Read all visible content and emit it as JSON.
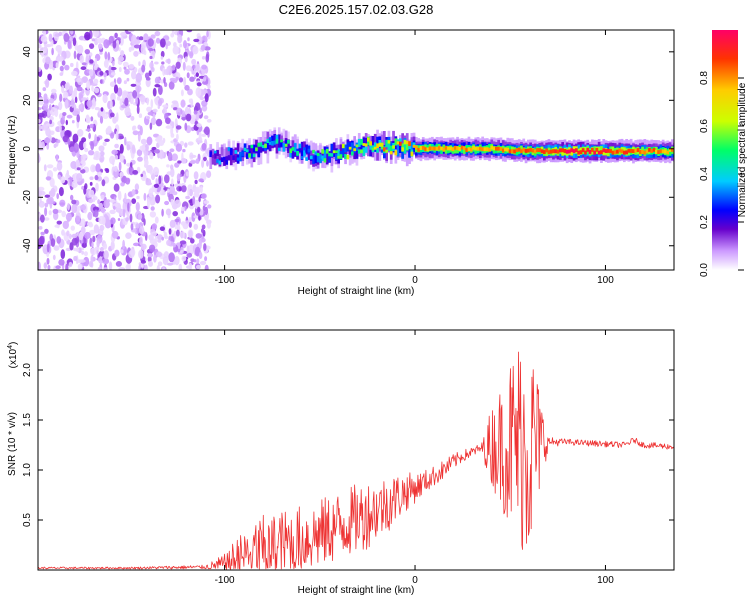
{
  "title": "C2E6.2025.157.02.03.G28",
  "chart_data": [
    {
      "type": "heatmap",
      "name": "spectrogram",
      "xlabel": "Height of straight line (km)",
      "ylabel": "Frequency (Hz)",
      "xlim": [
        -198,
        136
      ],
      "ylim": [
        -50,
        49
      ],
      "x_ticks": [
        -100,
        0,
        100
      ],
      "x_tick_labels": [
        "-100",
        "0",
        "100"
      ],
      "y_ticks": [
        -40,
        -20,
        0,
        20,
        40
      ],
      "y_tick_labels": [
        "-40",
        "-20",
        "0",
        "20",
        "40"
      ],
      "colorbar": {
        "label": "Normalized spectral amplitude",
        "range": [
          0,
          1
        ],
        "ticks": [
          0.0,
          0.2,
          0.4,
          0.6,
          0.8
        ],
        "tick_labels": [
          "0.0",
          "0.2",
          "0.4",
          "0.6",
          "0.8"
        ],
        "colors": [
          "#ffffff",
          "#cc99ff",
          "#6600cc",
          "#0000ff",
          "#00ccff",
          "#00ff66",
          "#ccff00",
          "#ffcc00",
          "#ff3300",
          "#ff0066"
        ]
      },
      "noise_region_x": [
        -198,
        -108
      ],
      "signal_track": {
        "x": [
          -108,
          -95,
          -85,
          -75,
          -65,
          -55,
          -45,
          -35,
          -25,
          -15,
          0,
          20,
          40,
          60,
          80,
          100,
          120,
          136
        ],
        "frequency": [
          -4,
          -2,
          -1,
          3,
          0,
          -3,
          -2,
          -1,
          2,
          1,
          0,
          0,
          0,
          -1,
          -1,
          -1,
          -1,
          -1
        ],
        "amplitude": [
          0.3,
          0.4,
          0.5,
          0.5,
          0.5,
          0.5,
          0.55,
          0.6,
          0.7,
          0.75,
          0.8,
          0.8,
          0.8,
          0.85,
          0.95,
          0.9,
          0.85,
          0.8
        ]
      }
    },
    {
      "type": "line",
      "name": "snr",
      "xlabel": "Height of straight line (km)",
      "ylabel": "SNR (10 * v/v)",
      "y_multiplier_label": "(x10",
      "y_multiplier_exp": "4",
      "y_multiplier_close": ")",
      "xlim": [
        -198,
        136
      ],
      "ylim": [
        0,
        2.4
      ],
      "x_ticks": [
        -100,
        0,
        100
      ],
      "x_tick_labels": [
        "-100",
        "0",
        "100"
      ],
      "y_ticks": [
        0.5,
        1.0,
        1.5,
        2.0
      ],
      "y_tick_labels": [
        "0.5",
        "1.0",
        "1.5",
        "2.0"
      ],
      "color": "#ee3333",
      "series": [
        {
          "x": [
            -198,
            -150,
            -110,
            -100,
            -95,
            -90,
            -85,
            -80,
            -75,
            -70,
            -65,
            -60,
            -55,
            -50,
            -45,
            -40,
            -35,
            -30,
            -25,
            -20,
            -15,
            -10,
            -5,
            0,
            5,
            10,
            15,
            20,
            25,
            30,
            35,
            40,
            45,
            50,
            55,
            60,
            65,
            70,
            80,
            90,
            100,
            110,
            115,
            120,
            130,
            136
          ],
          "y": [
            0.02,
            0.02,
            0.03,
            0.06,
            0.1,
            0.14,
            0.18,
            0.2,
            0.22,
            0.25,
            0.28,
            0.3,
            0.33,
            0.36,
            0.4,
            0.44,
            0.48,
            0.52,
            0.56,
            0.6,
            0.66,
            0.72,
            0.78,
            0.82,
            0.88,
            0.94,
            1.0,
            1.08,
            1.14,
            1.18,
            1.22,
            1.24,
            1.25,
            1.26,
            1.28,
            1.25,
            1.28,
            1.28,
            1.28,
            1.27,
            1.26,
            1.25,
            1.3,
            1.25,
            1.24,
            1.23
          ],
          "amp": [
            0.01,
            0.01,
            0.02,
            0.1,
            0.2,
            0.25,
            0.35,
            0.35,
            0.35,
            0.35,
            0.35,
            0.35,
            0.35,
            0.35,
            0.35,
            0.35,
            0.35,
            0.35,
            0.35,
            0.3,
            0.3,
            0.25,
            0.2,
            0.15,
            0.12,
            0.1,
            0.1,
            0.08,
            0.06,
            0.05,
            0.05,
            0.4,
            0.6,
            0.9,
            1.1,
            1.2,
            0.6,
            0.05,
            0.03,
            0.03,
            0.03,
            0.03,
            0.03,
            0.03,
            0.03,
            0.03
          ]
        }
      ]
    }
  ]
}
